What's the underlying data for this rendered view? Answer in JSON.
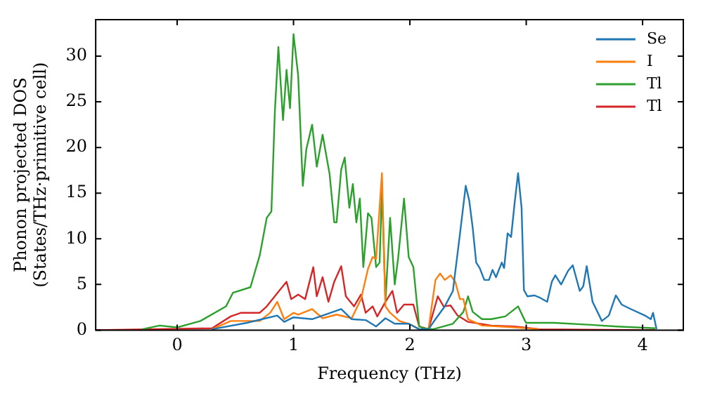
{
  "chart_data": {
    "type": "line",
    "xlabel": "Frequency (THz)",
    "ylabel": "Phonon projected DOS\n(States/THz·primitive cell)",
    "xlim": [
      -0.7,
      4.35
    ],
    "ylim": [
      0,
      34
    ],
    "xticks": [
      0,
      1,
      2,
      3,
      4
    ],
    "yticks": [
      0,
      5,
      10,
      15,
      20,
      25,
      30
    ],
    "grid": false,
    "legend": "top right",
    "marker": "none",
    "line_style": "solid",
    "series": [
      {
        "name": "Se",
        "color": "#1f77b4",
        "x": [
          0.3,
          0.6,
          0.86,
          0.92,
          1.0,
          1.16,
          1.41,
          1.5,
          1.62,
          1.71,
          1.79,
          1.87,
          1.99,
          2.08,
          2.16,
          2.22,
          2.3,
          2.37,
          2.43,
          2.48,
          2.51,
          2.54,
          2.57,
          2.6,
          2.64,
          2.68,
          2.71,
          2.74,
          2.79,
          2.81,
          2.84,
          2.87,
          2.9,
          2.93,
          2.96,
          2.98,
          3.01,
          3.07,
          3.11,
          3.18,
          3.22,
          3.25,
          3.3,
          3.36,
          3.4,
          3.46,
          3.49,
          3.52,
          3.57,
          3.65,
          3.71,
          3.77,
          3.82,
          3.9,
          4.02,
          4.07,
          4.09,
          4.12
        ],
        "values": [
          0.1,
          0.8,
          1.6,
          0.9,
          1.4,
          1.2,
          2.3,
          1.2,
          1.1,
          0.4,
          1.3,
          0.7,
          0.7,
          0.1,
          0.1,
          1.2,
          2.6,
          4.3,
          10.5,
          15.8,
          14.2,
          11.2,
          7.4,
          6.8,
          5.5,
          5.5,
          6.6,
          5.8,
          7.4,
          6.8,
          10.6,
          10.2,
          13.9,
          17.2,
          13.4,
          4.4,
          3.7,
          3.8,
          3.6,
          3.1,
          5.3,
          6.0,
          5.0,
          6.5,
          7.1,
          4.3,
          4.8,
          7.0,
          3.1,
          1.0,
          1.6,
          3.8,
          2.8,
          2.3,
          1.6,
          1.2,
          1.9,
          0.1
        ]
      },
      {
        "name": "I",
        "color": "#ff7f0e",
        "x": [
          0.3,
          0.46,
          0.71,
          0.8,
          0.86,
          0.92,
          1.0,
          1.04,
          1.16,
          1.25,
          1.37,
          1.5,
          1.58,
          1.64,
          1.68,
          1.71,
          1.76,
          1.79,
          1.83,
          1.91,
          1.99,
          2.08,
          2.16,
          2.22,
          2.26,
          2.3,
          2.35,
          2.39,
          2.43,
          2.46,
          2.5,
          2.62,
          2.9,
          3.11
        ],
        "values": [
          0.1,
          1.0,
          1.0,
          1.9,
          3.1,
          1.2,
          1.9,
          1.7,
          2.3,
          1.3,
          1.7,
          1.3,
          3.4,
          6.7,
          8.0,
          7.8,
          17.2,
          2.6,
          1.9,
          1.0,
          0.7,
          0.1,
          0.1,
          5.5,
          6.2,
          5.5,
          6.0,
          5.3,
          3.4,
          3.4,
          1.2,
          0.5,
          0.3,
          0.1
        ]
      },
      {
        "name": "Tl",
        "color": "#2ca02c",
        "x": [
          -0.3,
          -0.15,
          0.0,
          0.2,
          0.42,
          0.48,
          0.63,
          0.71,
          0.77,
          0.81,
          0.84,
          0.87,
          0.91,
          0.94,
          0.97,
          1.0,
          1.04,
          1.08,
          1.11,
          1.16,
          1.2,
          1.25,
          1.31,
          1.35,
          1.37,
          1.41,
          1.44,
          1.48,
          1.51,
          1.54,
          1.57,
          1.6,
          1.64,
          1.67,
          1.71,
          1.74,
          1.76,
          1.79,
          1.83,
          1.87,
          1.9,
          1.95,
          1.99,
          2.03,
          2.08,
          2.12,
          2.2,
          2.37,
          2.46,
          2.5,
          2.54,
          2.62,
          2.7,
          2.82,
          2.93,
          2.99,
          3.0,
          3.24,
          3.53,
          3.78,
          4.11
        ],
        "values": [
          0.1,
          0.5,
          0.3,
          1.0,
          2.6,
          4.1,
          4.7,
          8.2,
          12.3,
          13.0,
          24.0,
          31.0,
          23.0,
          28.5,
          24.3,
          32.4,
          27.9,
          15.8,
          19.8,
          22.5,
          17.9,
          21.4,
          17.1,
          11.8,
          11.8,
          17.6,
          18.9,
          13.4,
          16.0,
          11.8,
          14.4,
          6.9,
          12.8,
          12.3,
          6.9,
          7.4,
          15.5,
          3.1,
          12.3,
          5.0,
          8.0,
          14.4,
          8.0,
          6.9,
          0.4,
          0.2,
          0.1,
          0.7,
          2.0,
          3.7,
          2.0,
          1.2,
          1.2,
          1.5,
          2.6,
          1.0,
          0.8,
          0.8,
          0.6,
          0.4,
          0.2
        ]
      },
      {
        "name": "Tl",
        "color": "#d62728",
        "x": [
          -0.7,
          0.3,
          0.46,
          0.55,
          0.71,
          0.77,
          0.87,
          0.94,
          0.98,
          1.04,
          1.1,
          1.17,
          1.2,
          1.25,
          1.3,
          1.35,
          1.41,
          1.45,
          1.52,
          1.58,
          1.62,
          1.68,
          1.72,
          1.79,
          1.85,
          1.89,
          1.95,
          2.03,
          2.08,
          2.16,
          2.24,
          2.29,
          2.35,
          2.41,
          2.5,
          2.7,
          2.9,
          3.11,
          4.11
        ],
        "values": [
          0,
          0.2,
          1.5,
          1.9,
          1.9,
          2.6,
          4.2,
          5.3,
          3.4,
          3.9,
          3.4,
          6.9,
          3.7,
          5.8,
          3.1,
          5.3,
          7.0,
          3.7,
          2.6,
          3.9,
          1.9,
          2.6,
          1.5,
          3.1,
          4.3,
          1.9,
          2.8,
          2.8,
          0.4,
          0.1,
          3.7,
          2.6,
          2.7,
          1.6,
          0.9,
          0.5,
          0.4,
          0.1,
          0
        ]
      }
    ]
  }
}
